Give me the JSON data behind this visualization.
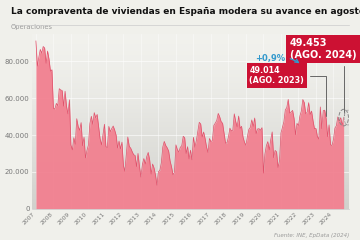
{
  "title": "La compraventa de viviendas en España modera su avance en agosto",
  "ylabel": "Operaciones",
  "source": "Fuente: INE, EpData (2024)",
  "bg_color": "#f0f0eb",
  "fill_color": "#f28090",
  "line_color": "#e0506a",
  "ylim": [
    0,
    95000
  ],
  "yticks": [
    0,
    20000,
    40000,
    60000,
    80000
  ],
  "ytick_labels": [
    "0",
    "20.000",
    "40.000",
    "60.000",
    "80.000"
  ],
  "box_color_2023": "#cc1133",
  "box_color_2024": "#cc1133",
  "arrow_color": "#3399cc",
  "pct_label": "+0,9%",
  "label_2023": "49.014\n(AGO. 2023)",
  "label_2024": "49.453\n(AGO. 2024)",
  "yearly_means": {
    "2007": 82000,
    "2008": 58000,
    "2009": 40000,
    "2010": 44000,
    "2011": 38000,
    "2012": 30000,
    "2013": 22000,
    "2014": 26000,
    "2015": 32000,
    "2016": 38000,
    "2017": 43000,
    "2018": 46000,
    "2019": 44000,
    "2020": 30000,
    "2021": 50000,
    "2022": 52000,
    "2023": 45000,
    "2024": 44000
  }
}
